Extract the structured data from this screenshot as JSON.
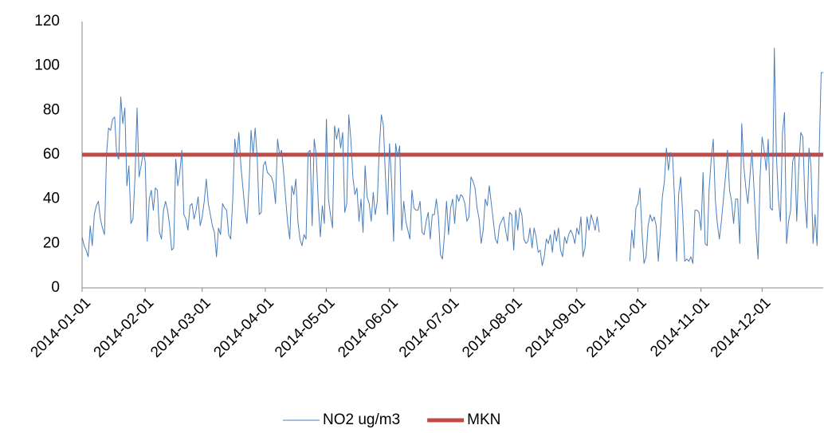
{
  "chart_data": {
    "type": "line",
    "categories": [
      "2014-01-01",
      null,
      null,
      null,
      null,
      null,
      null,
      null,
      null,
      null,
      null,
      null,
      null,
      null,
      null,
      null,
      null,
      null,
      null,
      null,
      null,
      null,
      null,
      null,
      null,
      null,
      null,
      null,
      null,
      null,
      null,
      "2014-02-01",
      null,
      null,
      null,
      null,
      null,
      null,
      null,
      null,
      null,
      null,
      null,
      null,
      null,
      null,
      null,
      null,
      null,
      null,
      null,
      null,
      null,
      null,
      null,
      null,
      null,
      null,
      null,
      "2014-03-01",
      null,
      null,
      null,
      null,
      null,
      null,
      null,
      null,
      null,
      null,
      null,
      null,
      null,
      null,
      null,
      null,
      null,
      null,
      null,
      null,
      null,
      null,
      null,
      null,
      null,
      null,
      null,
      null,
      null,
      null,
      "2014-04-01",
      null,
      null,
      null,
      null,
      null,
      null,
      null,
      null,
      null,
      null,
      null,
      null,
      null,
      null,
      null,
      null,
      null,
      null,
      null,
      null,
      null,
      null,
      null,
      null,
      null,
      null,
      null,
      null,
      null,
      "2014-05-01",
      null,
      null,
      null,
      null,
      null,
      null,
      null,
      null,
      null,
      null,
      null,
      null,
      null,
      null,
      null,
      null,
      null,
      null,
      null,
      null,
      null,
      null,
      null,
      null,
      null,
      null,
      null,
      null,
      null,
      null,
      "2014-06-01",
      null,
      null,
      null,
      null,
      null,
      null,
      null,
      null,
      null,
      null,
      null,
      null,
      null,
      null,
      null,
      null,
      null,
      null,
      null,
      null,
      null,
      null,
      null,
      null,
      null,
      null,
      null,
      null,
      null,
      "2014-07-01",
      null,
      null,
      null,
      null,
      null,
      null,
      null,
      null,
      null,
      null,
      null,
      null,
      null,
      null,
      null,
      null,
      null,
      null,
      null,
      null,
      null,
      null,
      null,
      null,
      null,
      null,
      null,
      null,
      null,
      null,
      "2014-08-01",
      null,
      null,
      null,
      null,
      null,
      null,
      null,
      null,
      null,
      null,
      null,
      null,
      null,
      null,
      null,
      null,
      null,
      null,
      null,
      null,
      null,
      null,
      null,
      null,
      null,
      null,
      null,
      null,
      null,
      null,
      "2014-09-01",
      null,
      null,
      null,
      null,
      null,
      null,
      null,
      null,
      null,
      null,
      null,
      null,
      null,
      null,
      null,
      null,
      null,
      null,
      null,
      null,
      null,
      null,
      null,
      null,
      null,
      null,
      null,
      null,
      null,
      "2014-10-01",
      null,
      null,
      null,
      null,
      null,
      null,
      null,
      null,
      null,
      null,
      null,
      null,
      null,
      null,
      null,
      null,
      null,
      null,
      null,
      null,
      null,
      null,
      null,
      null,
      null,
      null,
      null,
      null,
      null,
      null,
      "2014-11-01",
      null,
      null,
      null,
      null,
      null,
      null,
      null,
      null,
      null,
      null,
      null,
      null,
      null,
      null,
      null,
      null,
      null,
      null,
      null,
      null,
      null,
      null,
      null,
      null,
      null,
      null,
      null,
      null,
      null,
      "2014-12-01",
      null,
      null,
      null,
      null,
      null,
      null,
      null,
      null,
      null,
      null,
      null,
      null,
      null,
      null,
      null,
      null,
      null,
      null,
      null,
      null,
      null,
      null,
      null,
      null,
      null,
      null,
      null,
      null,
      null,
      null
    ],
    "series": [
      {
        "name": "NO2 ug/m3",
        "color": "#4a7ebb",
        "width": 1,
        "values": [
          23,
          19,
          17,
          14,
          28,
          19,
          33,
          37,
          39,
          31,
          27,
          24,
          60,
          72,
          71,
          76,
          77,
          60,
          58,
          86,
          74,
          81,
          46,
          55,
          29,
          31,
          50,
          81,
          50,
          55,
          61,
          57,
          21,
          40,
          44,
          35,
          45,
          44,
          25,
          22,
          35,
          39,
          35,
          28,
          17,
          18,
          58,
          46,
          52,
          62,
          33,
          31,
          26,
          37,
          38,
          31,
          35,
          41,
          28,
          32,
          39,
          49,
          38,
          33,
          28,
          25,
          14,
          27,
          24,
          38,
          36,
          35,
          24,
          22,
          40,
          67,
          59,
          70,
          55,
          45,
          35,
          29,
          46,
          71,
          60,
          72,
          59,
          33,
          34,
          55,
          57,
          52,
          51,
          50,
          47,
          38,
          67,
          60,
          62,
          52,
          40,
          29,
          22,
          46,
          42,
          49,
          30,
          22,
          19,
          24,
          22,
          61,
          62,
          28,
          67,
          60,
          38,
          23,
          37,
          29,
          76,
          40,
          33,
          27,
          73,
          67,
          72,
          63,
          70,
          34,
          38,
          78,
          67,
          50,
          42,
          45,
          30,
          40,
          25,
          55,
          41,
          38,
          30,
          43,
          33,
          39,
          64,
          78,
          73,
          50,
          33,
          65,
          48,
          21,
          65,
          59,
          64,
          26,
          39,
          30,
          26,
          22,
          44,
          36,
          35,
          35,
          39,
          25,
          24,
          30,
          34,
          22,
          33,
          33,
          40,
          32,
          15,
          13,
          24,
          39,
          24,
          36,
          40,
          29,
          42,
          39,
          42,
          41,
          38,
          30,
          32,
          50,
          48,
          45,
          36,
          31,
          20,
          26,
          40,
          37,
          46,
          38,
          30,
          22,
          20,
          28,
          30,
          32,
          26,
          21,
          34,
          33,
          17,
          35,
          26,
          36,
          33,
          22,
          20,
          21,
          27,
          18,
          27,
          23,
          16,
          17,
          10,
          14,
          22,
          20,
          24,
          16,
          26,
          21,
          27,
          17,
          14,
          23,
          20,
          24,
          26,
          24,
          20,
          27,
          24,
          32,
          14,
          18,
          32,
          26,
          33,
          30,
          26,
          32,
          25,
          null,
          null,
          null,
          null,
          null,
          null,
          null,
          null,
          null,
          null,
          null,
          null,
          null,
          null,
          12,
          26,
          18,
          36,
          38,
          45,
          25,
          11,
          14,
          28,
          33,
          30,
          32,
          28,
          12,
          25,
          41,
          48,
          63,
          53,
          61,
          60,
          40,
          12,
          42,
          50,
          33,
          12,
          13,
          12,
          14,
          11,
          35,
          35,
          34,
          26,
          52,
          20,
          19,
          45,
          58,
          67,
          40,
          29,
          22,
          30,
          40,
          50,
          62,
          44,
          39,
          29,
          40,
          40,
          20,
          74,
          55,
          45,
          38,
          50,
          62,
          45,
          26,
          13,
          50,
          68,
          62,
          53,
          67,
          36,
          35,
          108,
          60,
          40,
          30,
          70,
          79,
          20,
          30,
          35,
          57,
          60,
          30,
          55,
          70,
          68,
          40,
          27,
          63,
          55,
          20,
          33,
          19,
          60,
          97,
          97
        ]
      },
      {
        "name": "MKN",
        "color": "#be4b48",
        "width": 5,
        "values": [
          60,
          60,
          60,
          60,
          60,
          60,
          60,
          60,
          60,
          60,
          60,
          60,
          60,
          60,
          60,
          60,
          60,
          60,
          60,
          60,
          60,
          60,
          60,
          60,
          60,
          60,
          60,
          60,
          60,
          60,
          60,
          60,
          60,
          60,
          60,
          60,
          60,
          60,
          60,
          60,
          60,
          60,
          60,
          60,
          60,
          60,
          60,
          60,
          60,
          60,
          60,
          60,
          60,
          60,
          60,
          60,
          60,
          60,
          60,
          60,
          60,
          60,
          60,
          60,
          60,
          60,
          60,
          60,
          60,
          60,
          60,
          60,
          60,
          60,
          60,
          60,
          60,
          60,
          60,
          60,
          60,
          60,
          60,
          60,
          60,
          60,
          60,
          60,
          60,
          60,
          60,
          60,
          60,
          60,
          60,
          60,
          60,
          60,
          60,
          60,
          60,
          60,
          60,
          60,
          60,
          60,
          60,
          60,
          60,
          60,
          60,
          60,
          60,
          60,
          60,
          60,
          60,
          60,
          60,
          60,
          60,
          60,
          60,
          60,
          60,
          60,
          60,
          60,
          60,
          60,
          60,
          60,
          60,
          60,
          60,
          60,
          60,
          60,
          60,
          60,
          60,
          60,
          60,
          60,
          60,
          60,
          60,
          60,
          60,
          60,
          60,
          60,
          60,
          60,
          60,
          60,
          60,
          60,
          60,
          60,
          60,
          60,
          60,
          60,
          60,
          60,
          60,
          60,
          60,
          60,
          60,
          60,
          60,
          60,
          60,
          60,
          60,
          60,
          60,
          60,
          60,
          60,
          60,
          60,
          60,
          60,
          60,
          60,
          60,
          60,
          60,
          60,
          60,
          60,
          60,
          60,
          60,
          60,
          60,
          60,
          60,
          60,
          60,
          60,
          60,
          60,
          60,
          60,
          60,
          60,
          60,
          60,
          60,
          60,
          60,
          60,
          60,
          60,
          60,
          60,
          60,
          60,
          60,
          60,
          60,
          60,
          60,
          60,
          60,
          60,
          60,
          60,
          60,
          60,
          60,
          60,
          60,
          60,
          60,
          60,
          60,
          60,
          60,
          60,
          60,
          60,
          60,
          60,
          60,
          60,
          60,
          60,
          60,
          60,
          60,
          60,
          60,
          60,
          60,
          60,
          60,
          60,
          60,
          60,
          60,
          60,
          60,
          60,
          60,
          60,
          60,
          60,
          60,
          60,
          60,
          60,
          60,
          60,
          60,
          60,
          60,
          60,
          60,
          60,
          60,
          60,
          60,
          60,
          60,
          60,
          60,
          60,
          60,
          60,
          60,
          60,
          60,
          60,
          60,
          60,
          60,
          60,
          60,
          60,
          60,
          60,
          60,
          60,
          60,
          60,
          60,
          60,
          60,
          60,
          60,
          60,
          60,
          60,
          60,
          60,
          60,
          60,
          60,
          60,
          60,
          60,
          60,
          60,
          60,
          60,
          60,
          60,
          60,
          60,
          60,
          60,
          60,
          60,
          60,
          60,
          60,
          60,
          60,
          60,
          60,
          60,
          60,
          60,
          60,
          60,
          60,
          60,
          60,
          60,
          60,
          60,
          60,
          60,
          60,
          60,
          60,
          60,
          60,
          60,
          60
        ]
      }
    ],
    "ylim": [
      0,
      120
    ],
    "yticks": [
      0,
      20,
      40,
      60,
      80,
      100,
      120
    ],
    "grid": false,
    "legend": "bottom"
  }
}
